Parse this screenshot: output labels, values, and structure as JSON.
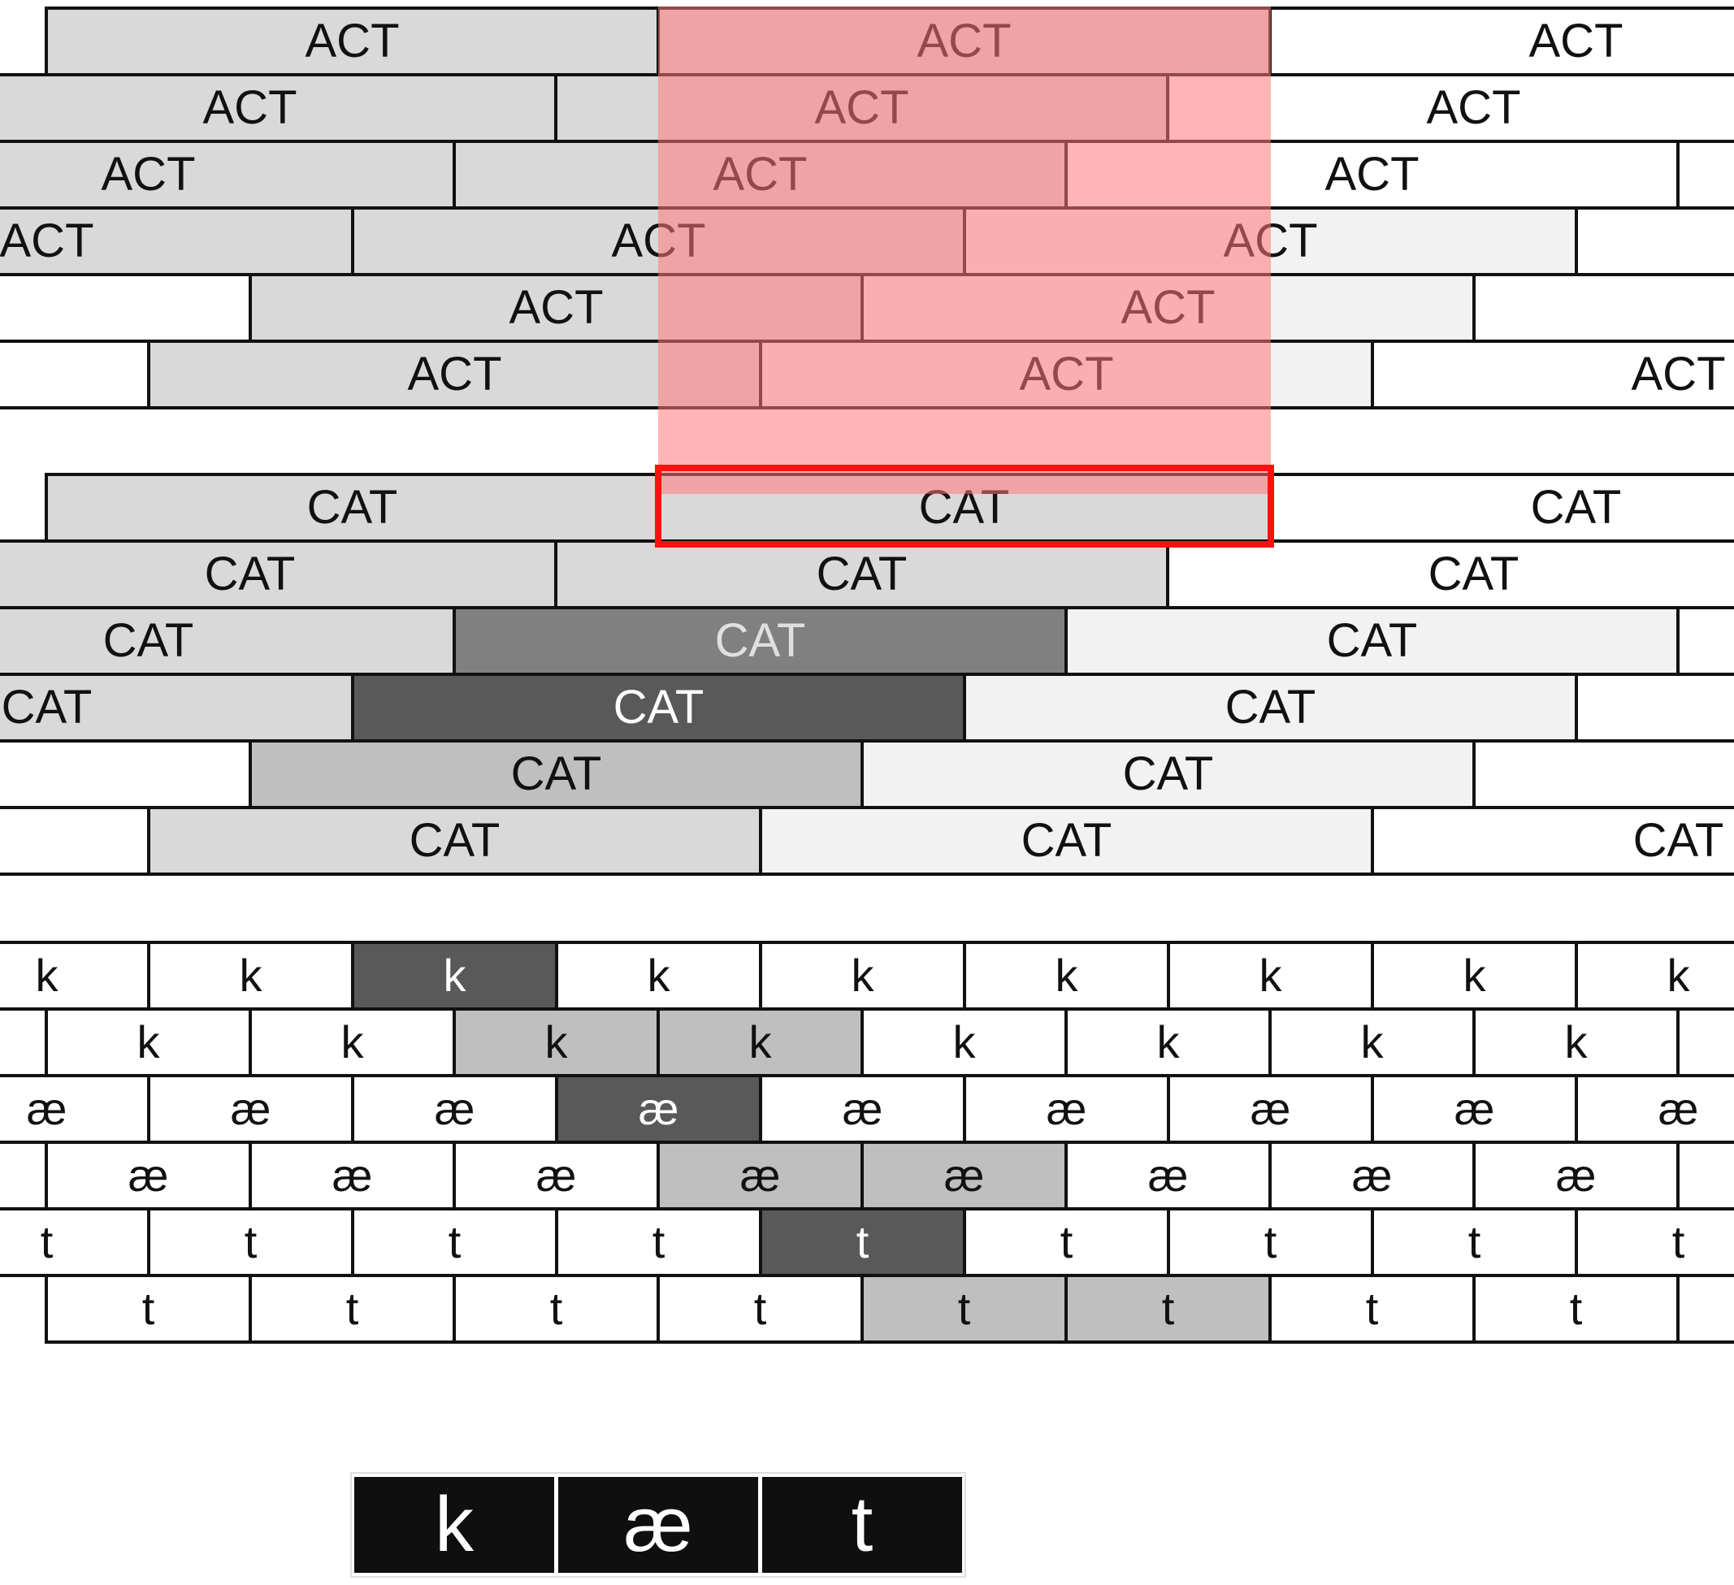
{
  "colors": {
    "white": "#ffffff",
    "light": "#f2f2f2",
    "mid": "#d9d9d9",
    "gray": "#bfbfbf",
    "dark_gray": "#808080",
    "darkest": "#595959",
    "highlight_band": "#ff7878",
    "highlight_border": "#ff1010",
    "final_fill": "#0f0f0f"
  },
  "act_rows": [
    [
      {
        "label": "ACT",
        "shade": "mid"
      },
      {
        "label": "ACT",
        "shade": "mid"
      },
      {
        "label": "ACT",
        "shade": "white"
      }
    ],
    [
      {
        "label": "ACT",
        "shade": "mid"
      },
      {
        "label": "ACT",
        "shade": "mid"
      },
      {
        "label": "ACT",
        "shade": "white"
      }
    ],
    [
      {
        "label": "ACT",
        "shade": "mid"
      },
      {
        "label": "ACT",
        "shade": "mid"
      },
      {
        "label": "ACT",
        "shade": "white"
      },
      {
        "label": "",
        "shade": "white"
      }
    ],
    [
      {
        "label": "ACT",
        "shade": "mid"
      },
      {
        "label": "ACT",
        "shade": "mid"
      },
      {
        "label": "ACT",
        "shade": "light"
      },
      {
        "label": "",
        "shade": "white"
      }
    ],
    [
      {
        "label": "",
        "shade": "white"
      },
      {
        "label": "ACT",
        "shade": "mid"
      },
      {
        "label": "ACT",
        "shade": "light"
      },
      {
        "label": "",
        "shade": "white"
      }
    ],
    [
      {
        "label": "",
        "shade": "white"
      },
      {
        "label": "ACT",
        "shade": "mid"
      },
      {
        "label": "ACT",
        "shade": "light"
      },
      {
        "label": "ACT",
        "shade": "white"
      }
    ]
  ],
  "cat_rows": [
    [
      {
        "label": "CAT",
        "shade": "mid"
      },
      {
        "label": "CAT",
        "shade": "mid"
      },
      {
        "label": "CAT",
        "shade": "white"
      }
    ],
    [
      {
        "label": "CAT",
        "shade": "mid"
      },
      {
        "label": "CAT",
        "shade": "mid"
      },
      {
        "label": "CAT",
        "shade": "white"
      }
    ],
    [
      {
        "label": "CAT",
        "shade": "mid"
      },
      {
        "label": "CAT",
        "shade": "dark_gray",
        "text": "light"
      },
      {
        "label": "CAT",
        "shade": "light"
      },
      {
        "label": "",
        "shade": "white"
      }
    ],
    [
      {
        "label": "CAT",
        "shade": "mid"
      },
      {
        "label": "CAT",
        "shade": "darkest",
        "text": "white"
      },
      {
        "label": "CAT",
        "shade": "light"
      },
      {
        "label": "",
        "shade": "white"
      }
    ],
    [
      {
        "label": "",
        "shade": "white"
      },
      {
        "label": "CAT",
        "shade": "gray"
      },
      {
        "label": "CAT",
        "shade": "light"
      },
      {
        "label": "",
        "shade": "white"
      }
    ],
    [
      {
        "label": "",
        "shade": "white"
      },
      {
        "label": "CAT",
        "shade": "mid"
      },
      {
        "label": "CAT",
        "shade": "light"
      },
      {
        "label": "CAT",
        "shade": "white"
      }
    ]
  ],
  "phoneme_rows": [
    {
      "label": "k",
      "highlight": {
        "2": "darkest"
      }
    },
    {
      "label": "k",
      "highlight": {
        "2": "gray",
        "3": "gray"
      }
    },
    {
      "label": "æ",
      "highlight": {
        "3": "darkest"
      }
    },
    {
      "label": "æ",
      "highlight": {
        "3": "gray",
        "4": "gray"
      }
    },
    {
      "label": "t",
      "highlight": {
        "4": "darkest"
      }
    },
    {
      "label": "t",
      "highlight": {
        "4": "gray",
        "5": "gray"
      }
    }
  ],
  "final_sequence": [
    "k",
    "æ",
    "t"
  ]
}
